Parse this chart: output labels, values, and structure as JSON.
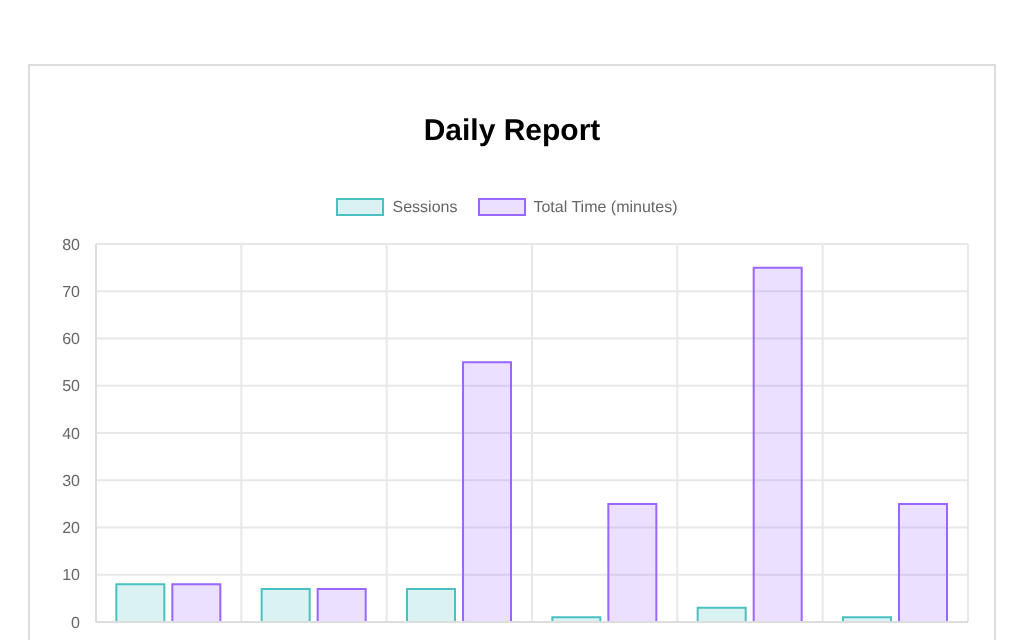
{
  "chart_data": {
    "type": "bar",
    "title": "Daily Report",
    "categories": [
      null,
      null,
      null,
      null,
      null,
      null
    ],
    "series": [
      {
        "name": "Sessions",
        "color": "#4bc0c0",
        "values": [
          8,
          7,
          7,
          1,
          3,
          1
        ]
      },
      {
        "name": "Total Time (minutes)",
        "color": "#9966ff",
        "values": [
          8,
          7,
          55,
          25,
          75,
          25
        ]
      }
    ],
    "ylim": [
      0,
      80
    ],
    "yticks": [
      0,
      10,
      20,
      30,
      40,
      50,
      60,
      70,
      80
    ],
    "grid": true,
    "legend": "top"
  }
}
